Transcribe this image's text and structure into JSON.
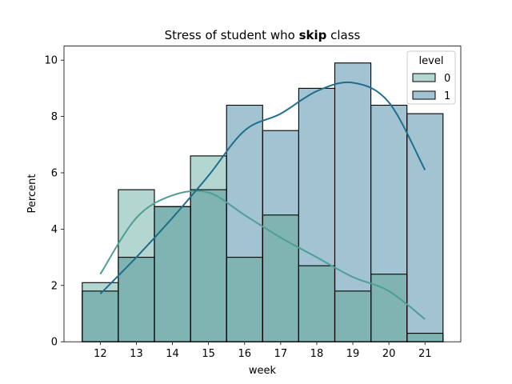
{
  "chart_data": {
    "type": "bar",
    "title_prefix": "Stress of student who ",
    "title_bold": "skip",
    "title_suffix": " class",
    "xlabel": "week",
    "ylabel": "Percent",
    "categories": [
      "12",
      "13",
      "14",
      "15",
      "16",
      "17",
      "18",
      "19",
      "20",
      "21"
    ],
    "x": [
      12,
      13,
      14,
      15,
      16,
      17,
      18,
      19,
      20,
      21
    ],
    "ylim": [
      0,
      10.5
    ],
    "yticks": [
      0,
      2,
      4,
      6,
      8,
      10
    ],
    "legend": {
      "title": "level",
      "placement": "top-right"
    },
    "series": [
      {
        "name": "0",
        "values": [
          2.1,
          5.4,
          4.8,
          6.6,
          3.0,
          4.5,
          2.7,
          1.8,
          2.4,
          0.3
        ],
        "kde": [
          2.4,
          4.4,
          5.2,
          5.3,
          4.5,
          3.7,
          3.0,
          2.3,
          1.8,
          0.8
        ],
        "color": "#4f9e94",
        "fill": "#b3d6d0"
      },
      {
        "name": "1",
        "values": [
          1.8,
          3.0,
          4.8,
          5.4,
          8.4,
          7.5,
          9.0,
          9.9,
          8.4,
          8.1
        ],
        "kde": [
          1.7,
          3.0,
          4.4,
          5.9,
          7.5,
          8.1,
          8.9,
          9.2,
          8.5,
          6.1
        ],
        "color": "#1f6e8c",
        "fill": "#a2c3d1"
      }
    ],
    "overlap_fill": "#7fb4b2",
    "grid": false
  }
}
